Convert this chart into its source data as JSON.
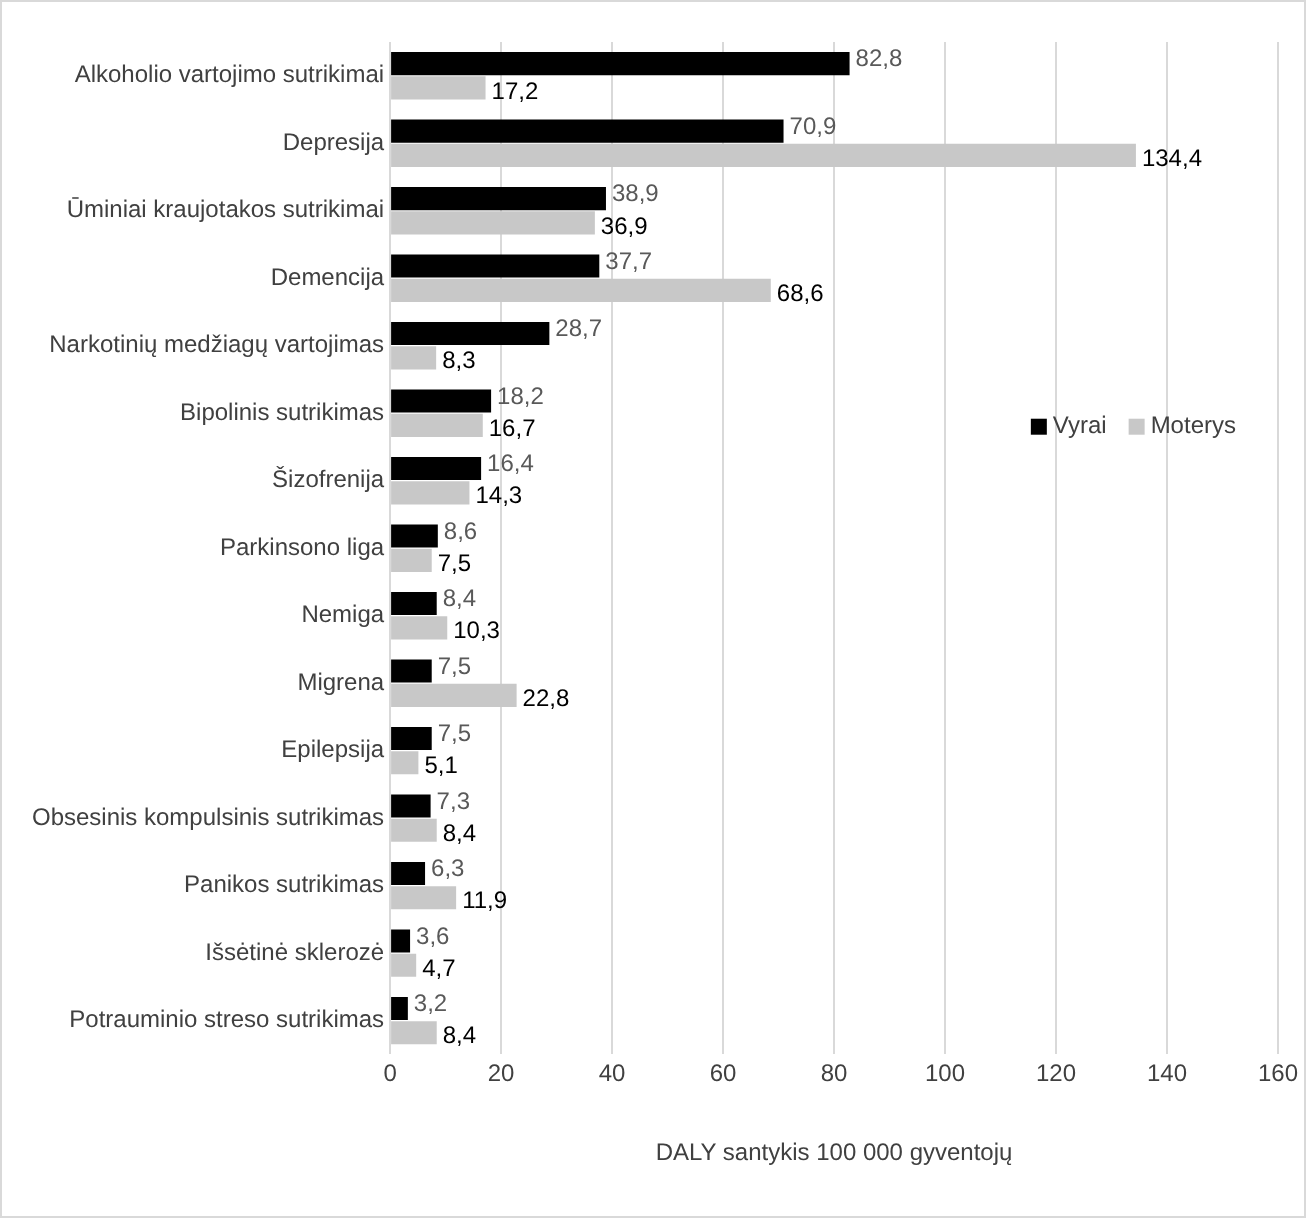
{
  "chart_data": {
    "type": "bar",
    "orientation": "horizontal",
    "xlabel": "DALY santykis 100 000 gyventojų",
    "categories": [
      "Alkoholio vartojimo sutrikimai",
      "Depresija",
      "Ūminiai kraujotakos sutrikimai",
      "Demencija",
      "Narkotinių medžiagų vartojimas",
      "Bipolinis sutrikimas",
      "Šizofrenija",
      "Parkinsono liga",
      "Nemiga",
      "Migrena",
      "Epilepsija",
      "Obsesinis kompulsinis sutrikimas",
      "Panikos sutrikimas",
      "Išsėtinė sklerozė",
      "Potrauminio streso sutrikimas"
    ],
    "series": [
      {
        "name": "Vyrai",
        "color": "#000000",
        "values": [
          82.8,
          70.9,
          38.9,
          37.7,
          28.7,
          18.2,
          16.4,
          8.6,
          8.4,
          7.5,
          7.5,
          7.3,
          6.3,
          3.6,
          3.2
        ],
        "value_labels": [
          "82,8",
          "70,9",
          "38,9",
          "37,7",
          "28,7",
          "18,2",
          "16,4",
          "8,6",
          "8,4",
          "7,5",
          "7,5",
          "7,3",
          "6,3",
          "3,6",
          "3,2"
        ]
      },
      {
        "name": "Moterys",
        "color": "#c8c8c8",
        "values": [
          17.2,
          134.4,
          36.9,
          68.6,
          8.3,
          16.7,
          14.3,
          7.5,
          10.3,
          22.8,
          5.1,
          8.4,
          11.9,
          4.7,
          8.4
        ],
        "value_labels": [
          "17,2",
          "134,4",
          "36,9",
          "68,6",
          "8,3",
          "16,7",
          "14,3",
          "7,5",
          "10,3",
          "22,8",
          "5,1",
          "8,4",
          "11,9",
          "4,7",
          "8,4"
        ]
      }
    ],
    "xlim": [
      0,
      160
    ],
    "xticks": [
      0,
      20,
      40,
      60,
      80,
      100,
      120,
      140,
      160
    ],
    "grid": "x",
    "legend": "right"
  }
}
